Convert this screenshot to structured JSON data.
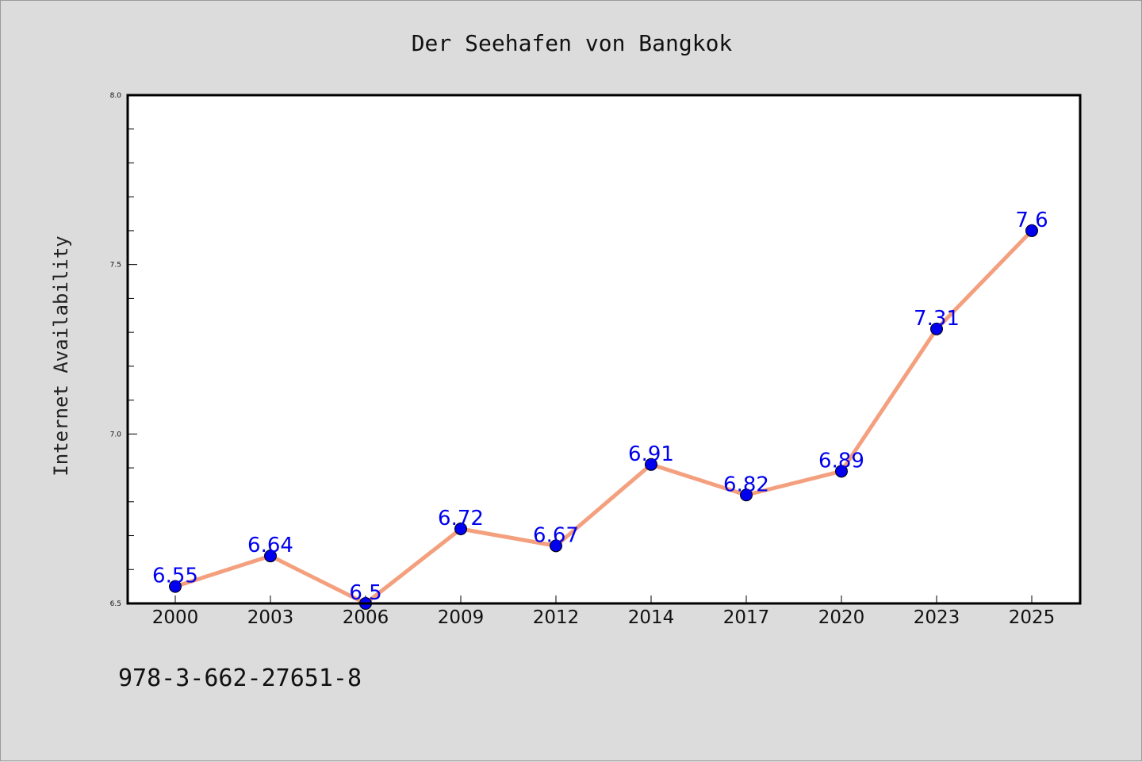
{
  "chart_data": {
    "type": "line",
    "title": "Der Seehafen von Bangkok",
    "xlabel": "",
    "ylabel": "Internet Availability",
    "categories": [
      "2000",
      "2003",
      "2006",
      "2009",
      "2012",
      "2014",
      "2017",
      "2020",
      "2023",
      "2025"
    ],
    "series": [
      {
        "values": [
          6.55,
          6.64,
          6.5,
          6.72,
          6.67,
          6.91,
          6.82,
          6.89,
          7.31,
          7.6
        ],
        "data_labels": [
          "6.55",
          "6.64",
          "6.5",
          "6.72",
          "6.67",
          "6.91",
          "6.82",
          "6.89",
          "7.31",
          "7.6"
        ]
      }
    ],
    "ylim": [
      6.5,
      8.0
    ],
    "yticks": [
      "6.5",
      "7.0",
      "7.5",
      "8.0"
    ],
    "grid": false,
    "legend": "none",
    "line_color": "#f4a07e",
    "marker_color": "#0000ee",
    "label_color": "#0000ee",
    "plot_background": "#ffffff",
    "page_background": "#dcdcdc"
  },
  "footer": {
    "isbn": "978-3-662-27651-8"
  }
}
